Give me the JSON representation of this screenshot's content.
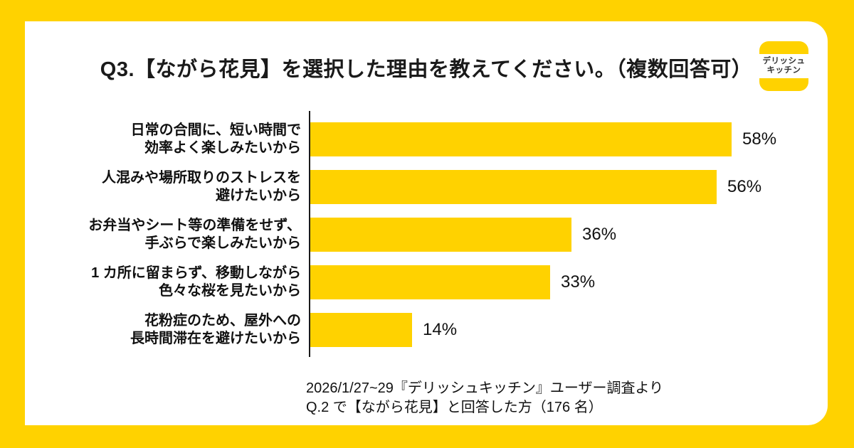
{
  "page": {
    "background_color": "#FFD200",
    "card_color": "#FFFFFF"
  },
  "logo": {
    "line1": "デリッシュ",
    "line2": "キッチン",
    "band_color": "#FFD200",
    "text_color": "#333333"
  },
  "chart_data": {
    "type": "bar",
    "orientation": "horizontal",
    "title": "Q3.【ながら花見】を選択した理由を教えてください。（複数回答可）",
    "categories": [
      "日常の合間に、短い時間で\n効率よく楽しみたいから",
      "人混みや場所取りのストレスを\n避けたいから",
      "お弁当やシート等の準備をせず、\n手ぶらで楽しみたいから",
      "1 カ所に留まらず、移動しながら\n色々な桜を見たいから",
      "花粉症のため、屋外への\n長時間滞在を避けたいから"
    ],
    "values": [
      58,
      56,
      36,
      33,
      14
    ],
    "value_labels": [
      "58%",
      "56%",
      "36%",
      "33%",
      "14%"
    ],
    "unit": "%",
    "xlim": [
      0,
      60
    ],
    "grid": false,
    "legend": false,
    "bar_color": "#FFD200",
    "axis_color": "#1A1A1A"
  },
  "source": {
    "line1": "2026/1/27~29『デリッシュキッチン』ユーザー調査より",
    "line2": "Q.2 で【ながら花見】と回答した方（176 名）"
  }
}
